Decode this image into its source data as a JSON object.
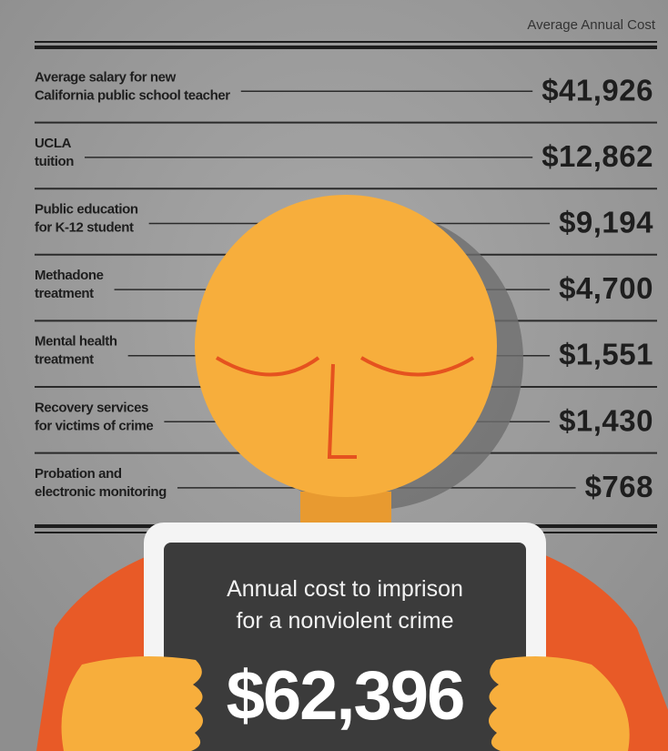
{
  "header": {
    "column_label": "Average Annual Cost"
  },
  "rows": [
    {
      "label": [
        "Average salary for new",
        "California public school teacher"
      ],
      "value": "$41,926"
    },
    {
      "label": [
        "UCLA",
        "tuition"
      ],
      "value": "$12,862"
    },
    {
      "label": [
        "Public education",
        "for K-12 student"
      ],
      "value": "$9,194"
    },
    {
      "label": [
        "Methadone",
        "treatment"
      ],
      "value": "$4,700"
    },
    {
      "label": [
        "Mental health",
        "treatment"
      ],
      "value": "$1,551"
    },
    {
      "label": [
        "Recovery services",
        "for victims of crime"
      ],
      "value": "$1,430"
    },
    {
      "label": [
        "Probation and",
        "electronic monitoring"
      ],
      "value": "$768"
    }
  ],
  "placard": {
    "caption": [
      "Annual cost to imprison",
      "for a nonviolent crime"
    ],
    "amount": "$62,396"
  }
}
